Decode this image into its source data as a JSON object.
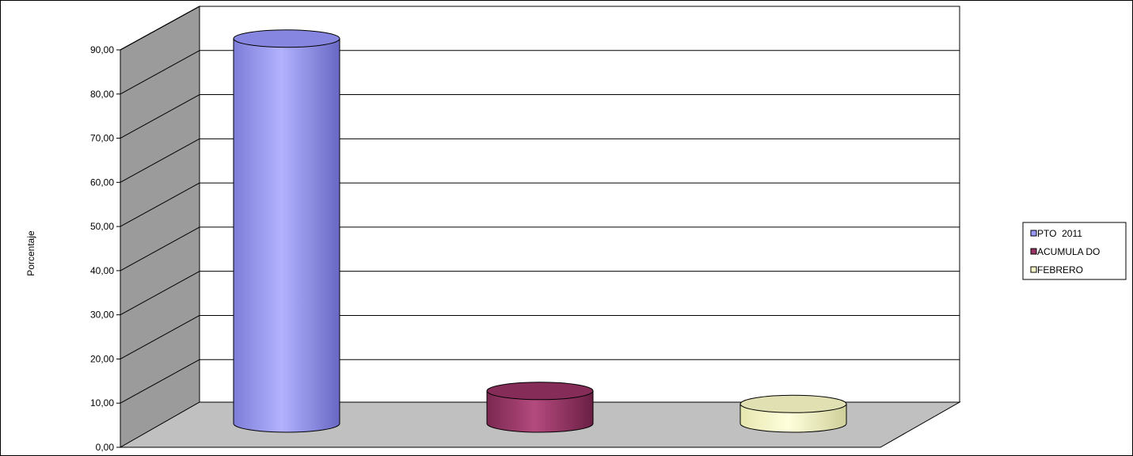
{
  "chart_data": {
    "type": "bar",
    "style": "3d-cylinder",
    "title": "",
    "xlabel": "",
    "ylabel": "Porcentaje",
    "ylim": [
      0,
      90
    ],
    "yticks": [
      "0,00",
      "10,00",
      "20,00",
      "30,00",
      "40,00",
      "50,00",
      "60,00",
      "70,00",
      "80,00",
      "90,00"
    ],
    "grid": true,
    "legend_position": "right",
    "series": [
      {
        "name": "PTO  2011",
        "values": [
          88.5
        ],
        "color": "#9999ff"
      },
      {
        "name": "ACUMULA DO",
        "values": [
          7.5
        ],
        "color": "#993366"
      },
      {
        "name": "FEBRERO",
        "values": [
          4.5
        ],
        "color": "#ffffcc"
      }
    ]
  }
}
